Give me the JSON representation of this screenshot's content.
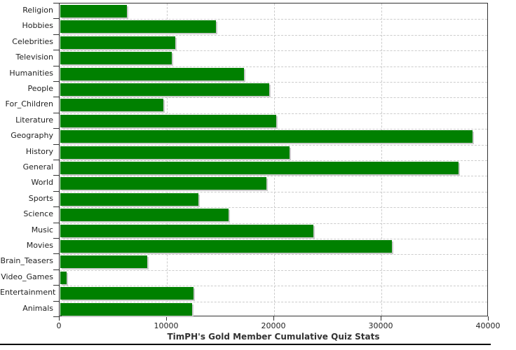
{
  "chart_data": {
    "type": "bar",
    "orientation": "horizontal",
    "title": "TimPH's Gold Member Cumulative Quiz Stats",
    "categories": [
      "Religion",
      "Hobbies",
      "Celebrities",
      "Television",
      "Humanities",
      "People",
      "For_Children",
      "Literature",
      "Geography",
      "History",
      "General",
      "World",
      "Sports",
      "Science",
      "Music",
      "Movies",
      "Brain_Teasers",
      "Video_Games",
      "Entertainment",
      "Animals"
    ],
    "values": [
      6200,
      14500,
      10700,
      10400,
      17100,
      19500,
      9600,
      20100,
      38400,
      21400,
      37100,
      19200,
      12900,
      15700,
      23600,
      30900,
      8100,
      600,
      12400,
      12300
    ],
    "xlim": [
      0,
      40000
    ],
    "x_ticks": [
      0,
      10000,
      20000,
      30000,
      40000
    ],
    "x_tick_labels": [
      "0",
      "10000",
      "20000",
      "30000",
      "40000"
    ],
    "grid": "dashed",
    "legend": "none",
    "colors": {
      "bar": "#008000",
      "bar_shadow": "#cccccc",
      "gridline": "#cccccc",
      "axis": "#333333",
      "text": "#222222",
      "title": "#333333",
      "background": "#ffffff",
      "bottom_rule": "#000000"
    }
  }
}
